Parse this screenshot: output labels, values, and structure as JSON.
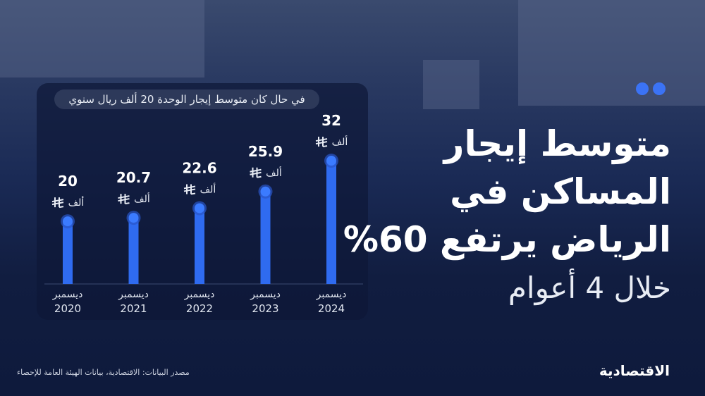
{
  "headline": {
    "line1": "متوسط إيجار",
    "line2": "المساكن في",
    "line3": "الرياض يرتفع 60%",
    "subtitle": "خلال 4 أعوام"
  },
  "chart_note": "في حال كان متوسط إيجار الوحدة 20 ألف ريال سنوي",
  "source": "مصدر البيانات: الاقتصادية، بيانات الهيئة العامة للإحصاء",
  "logo": "الاقتصادية",
  "colors": {
    "bar": "#2f6bf0",
    "accent": "#3b73f5",
    "background": "#0e1a3c"
  },
  "chart_data": {
    "type": "bar",
    "title": "في حال كان متوسط إيجار الوحدة 20 ألف ريال سنوي",
    "categories": [
      "ديسمبر 2020",
      "ديسمبر 2021",
      "ديسمبر 2022",
      "ديسمبر 2023",
      "ديسمبر 2024"
    ],
    "month_label": "ديسمبر",
    "years": [
      "2020",
      "2021",
      "2022",
      "2023",
      "2024"
    ],
    "values": [
      20,
      20.7,
      22.6,
      25.9,
      32
    ],
    "value_labels": [
      "20",
      "20.7",
      "22.6",
      "25.9",
      "32"
    ],
    "unit_label": "ألف",
    "ylabel": "ألف ريال",
    "xlabel": "",
    "grid": false
  }
}
